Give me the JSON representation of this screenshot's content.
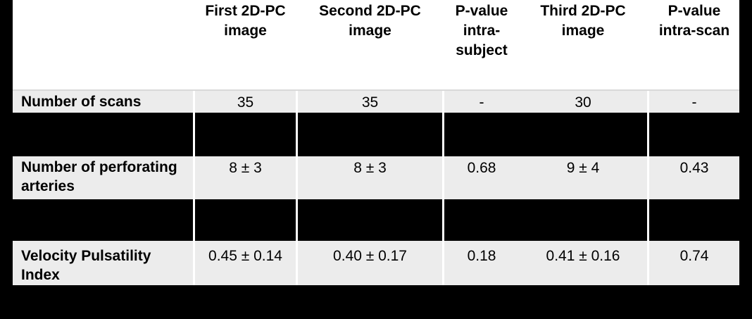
{
  "colors": {
    "page_background": "#000000",
    "header_background": "#ffffff",
    "data_row_background": "#ececec",
    "grid_line": "#ffffff",
    "text": "#000000"
  },
  "table": {
    "header": {
      "row_label_header": "",
      "columns": [
        {
          "label": "First 2D-PC image",
          "lines": [
            "First 2D-PC",
            "image"
          ]
        },
        {
          "label": "Second 2D-PC image",
          "lines": [
            "Second 2D-PC",
            "image"
          ]
        },
        {
          "label": "P-value intra-subject",
          "lines": [
            "P-value",
            "intra-",
            "subject"
          ]
        },
        {
          "label": "Third 2D-PC image",
          "lines": [
            "Third 2D-PC",
            "image"
          ]
        },
        {
          "label": "P-value intra-scan",
          "lines": [
            "P-value",
            "intra-scan"
          ]
        }
      ]
    },
    "rows": [
      {
        "label": "Number of scans",
        "label_lines": [
          "Number of scans"
        ],
        "values": [
          "35",
          "35",
          "-",
          "30",
          "-"
        ]
      },
      {
        "label": "Number of perforating arteries",
        "label_lines": [
          "Number of perforating",
          "arteries"
        ],
        "values": [
          "8 ± 3",
          "8 ± 3",
          "0.68",
          "9 ± 4",
          "0.43"
        ]
      },
      {
        "label": "Velocity Pulsatility Index",
        "label_lines": [
          "Velocity Pulsatility",
          "Index"
        ],
        "values": [
          "0.45 ± 0.14",
          "0.40 ± 0.17",
          "0.18",
          "0.41 ± 0.16",
          "0.74"
        ]
      }
    ]
  }
}
